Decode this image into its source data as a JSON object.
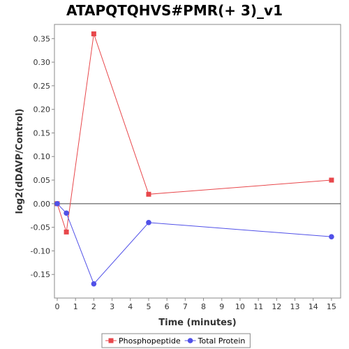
{
  "chart_data": {
    "type": "line",
    "title": "ATAPQTQHVS#PMR(+ 3)_v1",
    "xlabel": "Time (minutes)",
    "ylabel": "log2(dDAVP/Control)",
    "xlim": [
      0,
      15.5
    ],
    "ylim": [
      -0.2,
      0.38
    ],
    "x_ticks": [
      "0",
      "1",
      "2",
      "3",
      "4",
      "5",
      "6",
      "7",
      "8",
      "9",
      "10",
      "11",
      "12",
      "13",
      "14",
      "15"
    ],
    "y_ticks": [
      "0.35",
      "0.30",
      "0.25",
      "0.20",
      "0.15",
      "0.10",
      "0.05",
      "0.00",
      "-0.05",
      "-0.10",
      "-0.15"
    ],
    "grid": false,
    "zero_line": true,
    "legend_position": "bottom",
    "series": [
      {
        "name": "Phosphopeptide",
        "color": "#e8474b",
        "marker": "square",
        "x": [
          0,
          0.5,
          2,
          5,
          15
        ],
        "y": [
          0.0,
          -0.06,
          0.36,
          0.02,
          0.05
        ]
      },
      {
        "name": "Total Protein",
        "color": "#5050e8",
        "marker": "circle",
        "x": [
          0,
          0.5,
          2,
          5,
          15
        ],
        "y": [
          0.0,
          -0.02,
          -0.17,
          -0.04,
          -0.07
        ]
      }
    ]
  }
}
